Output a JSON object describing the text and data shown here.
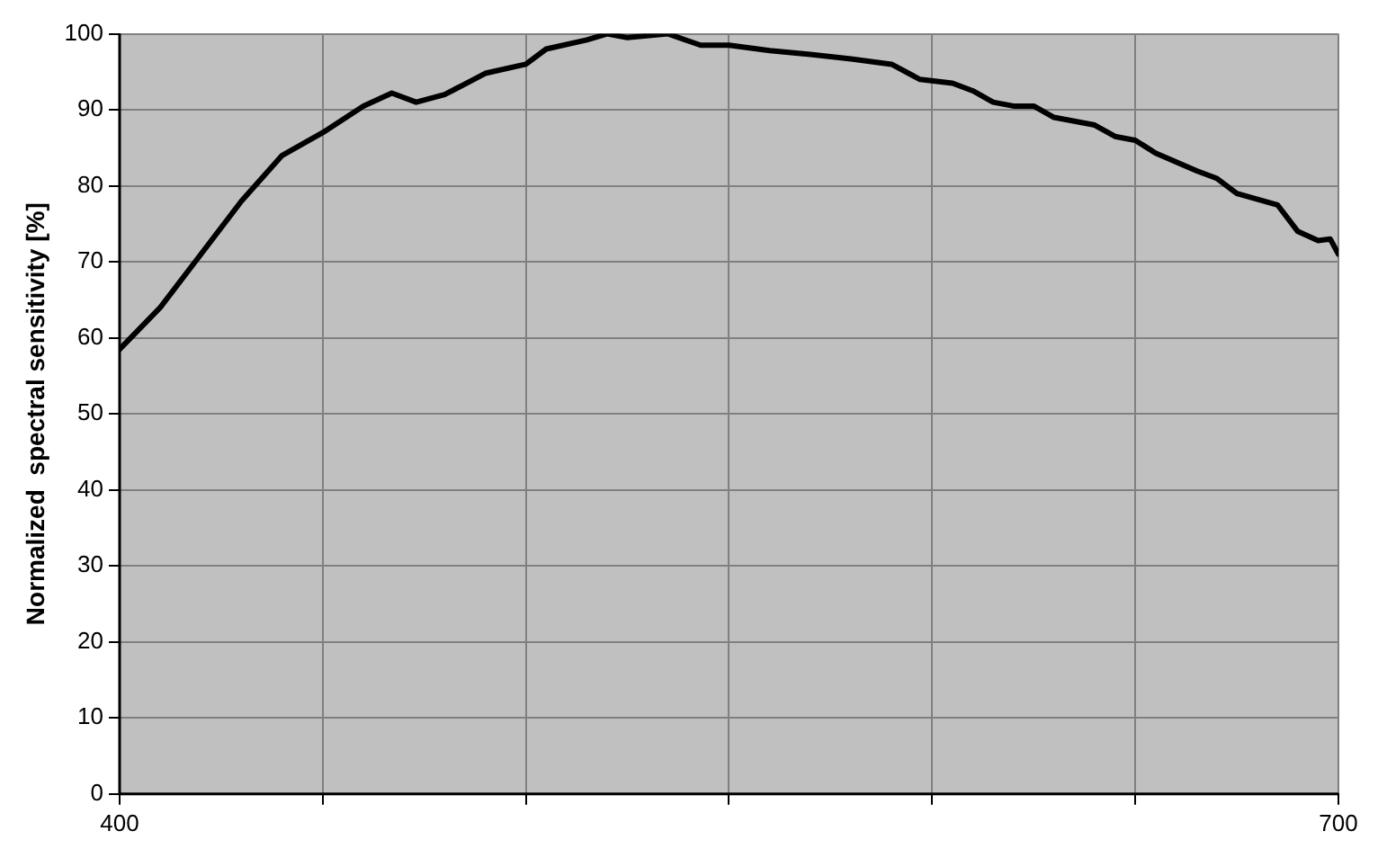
{
  "chart_data": {
    "type": "line",
    "ylabel": "Normalized  spectral sensitivity [%]",
    "x": [
      400,
      410,
      420,
      430,
      440,
      450,
      460,
      467,
      473,
      480,
      490,
      500,
      505,
      515,
      520,
      525,
      535,
      543,
      550,
      560,
      570,
      580,
      590,
      597,
      605,
      610,
      615,
      620,
      625,
      630,
      640,
      645,
      650,
      655,
      665,
      670,
      675,
      685,
      690,
      695,
      698,
      700
    ],
    "series": [
      {
        "color": "#000000",
        "values": [
          58.5,
          64,
          71,
          78,
          84,
          87,
          90.5,
          92.2,
          91,
          92,
          94.8,
          96,
          98,
          99.2,
          100,
          99.5,
          100,
          98.5,
          98.5,
          97.8,
          97.3,
          96.7,
          96,
          94,
          93.5,
          92.5,
          91,
          90.5,
          90.5,
          89,
          88,
          86.5,
          86,
          84.3,
          82,
          81,
          79,
          77.5,
          74,
          72.8,
          73,
          71
        ]
      }
    ],
    "xlim": [
      400,
      700
    ],
    "xticks": [
      400,
      {
        "value": 450,
        "label": null
      },
      {
        "value": 500,
        "label": null
      },
      {
        "value": 550,
        "label": null
      },
      {
        "value": 600,
        "label": null
      },
      {
        "value": 650,
        "label": null
      },
      700
    ],
    "ylim": [
      0,
      100
    ],
    "yticks": [
      0,
      10,
      20,
      30,
      40,
      50,
      60,
      70,
      80,
      90,
      100
    ],
    "grid": true,
    "legend": false,
    "marker": "none",
    "line_style": "solid"
  }
}
